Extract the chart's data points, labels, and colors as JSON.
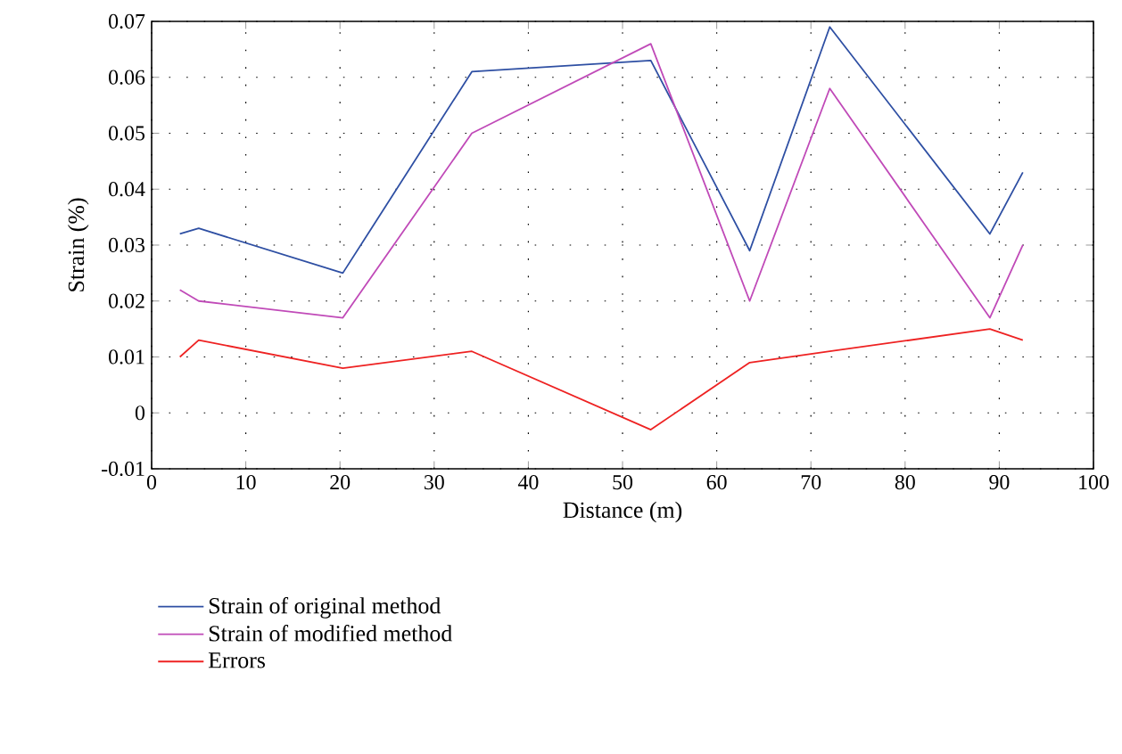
{
  "chart_data": {
    "type": "line",
    "xlabel": "Distance (m)",
    "ylabel": "Strain (%)",
    "x": [
      3,
      5,
      20.3,
      34,
      53,
      63.5,
      72,
      89,
      92.5
    ],
    "series": [
      {
        "name": "Strain of original method",
        "color": "#2e4fa3",
        "values": [
          0.032,
          0.033,
          0.025,
          0.061,
          0.063,
          0.029,
          0.069,
          0.032,
          0.043
        ]
      },
      {
        "name": "Strain of modified method",
        "color": "#c04ab8",
        "values": [
          0.022,
          0.02,
          0.017,
          0.05,
          0.066,
          0.02,
          0.058,
          0.017,
          0.03
        ]
      },
      {
        "name": "Errors",
        "color": "#ee2222",
        "values": [
          0.01,
          0.013,
          0.008,
          0.011,
          -0.003,
          0.009,
          0.011,
          0.015,
          0.013
        ]
      }
    ],
    "xlim": [
      0,
      100
    ],
    "xticks": [
      0,
      10,
      20,
      30,
      40,
      50,
      60,
      70,
      80,
      90,
      100
    ],
    "ylim": [
      -0.01,
      0.07
    ],
    "yticks": [
      {
        "value": -0.01,
        "label": "-0.01"
      },
      0,
      {
        "value": 0.01,
        "label": "0.01"
      },
      {
        "value": 0.02,
        "label": "0.02"
      },
      {
        "value": 0.03,
        "label": "0.03"
      },
      {
        "value": 0.04,
        "label": "0.04"
      },
      {
        "value": 0.05,
        "label": "0.05"
      },
      {
        "value": 0.06,
        "label": "0.06"
      },
      {
        "value": 0.07,
        "label": "0.07"
      }
    ],
    "grid": true,
    "legend": "bottom left",
    "marker": "none",
    "line_style": "solid"
  }
}
